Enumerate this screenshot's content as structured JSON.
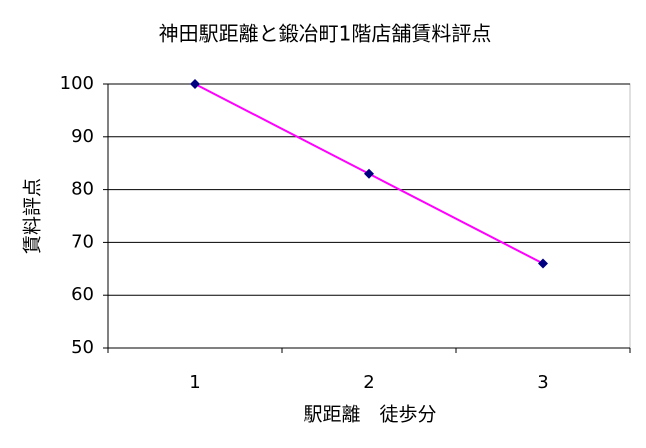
{
  "chart_data": {
    "type": "line",
    "title": "神田駅距離と鍛冶町1階店舗賃料評点",
    "x_label": "駅距離　徒歩分",
    "y_label": "賃料評点",
    "categories": [
      "1",
      "2",
      "3"
    ],
    "values": [
      100,
      83,
      66
    ],
    "color": "#ff00ff",
    "marker_color": "#000080",
    "ylim": [
      50,
      100
    ],
    "yticks": [
      50,
      60,
      70,
      80,
      90,
      100
    ],
    "grid": true
  }
}
